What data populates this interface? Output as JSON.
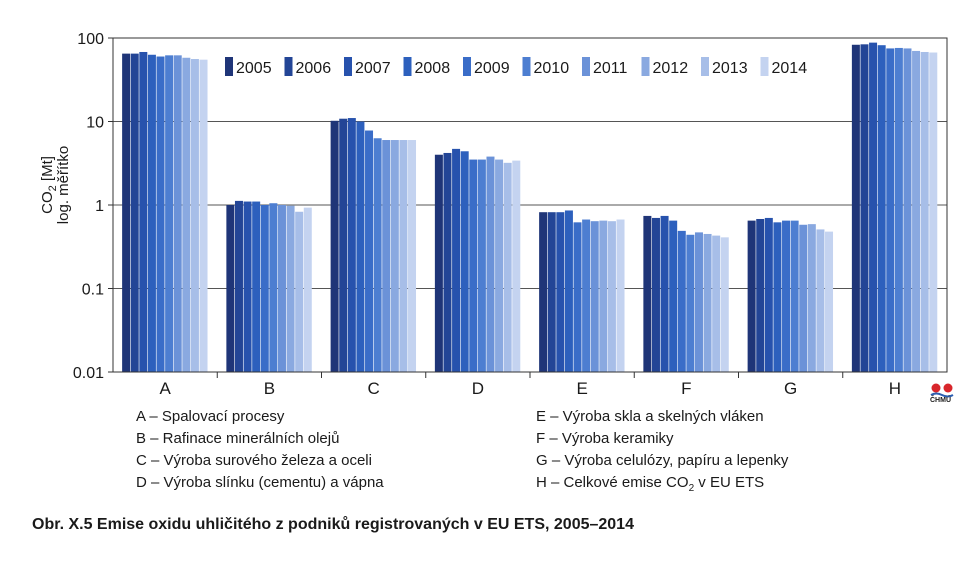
{
  "chart_data": {
    "type": "bar",
    "ylabel_line1": "CO2 [Mt]",
    "ylabel_line2": "log. měřítko",
    "yscale": "log",
    "ylim": [
      0.01,
      100
    ],
    "yticks": [
      "100",
      "10",
      "1",
      "0.1",
      "0.01"
    ],
    "ytick_values": [
      100,
      10,
      1,
      0.1,
      0.01
    ],
    "grid": "horizontal",
    "legend_position": "top-inside",
    "categories": [
      "A",
      "B",
      "C",
      "D",
      "E",
      "F",
      "G",
      "H"
    ],
    "series": [
      {
        "name": "2005",
        "color": "#1f3578",
        "values": [
          65,
          1.0,
          10.2,
          4.0,
          0.82,
          0.74,
          0.65,
          83
        ]
      },
      {
        "name": "2006",
        "color": "#234596",
        "values": [
          65,
          1.12,
          10.8,
          4.2,
          0.82,
          0.7,
          0.68,
          84
        ]
      },
      {
        "name": "2007",
        "color": "#2752ad",
        "values": [
          68,
          1.1,
          11.0,
          4.7,
          0.82,
          0.74,
          0.7,
          88
        ]
      },
      {
        "name": "2008",
        "color": "#2d60bd",
        "values": [
          63,
          1.1,
          10.0,
          4.4,
          0.86,
          0.65,
          0.62,
          82
        ]
      },
      {
        "name": "2009",
        "color": "#3a6dc8",
        "values": [
          60,
          1.0,
          7.8,
          3.5,
          0.62,
          0.49,
          0.65,
          75
        ]
      },
      {
        "name": "2010",
        "color": "#4d7ed1",
        "values": [
          62,
          1.05,
          6.3,
          3.5,
          0.67,
          0.44,
          0.65,
          76
        ]
      },
      {
        "name": "2011",
        "color": "#6b92d8",
        "values": [
          62,
          1.0,
          6.0,
          3.8,
          0.64,
          0.47,
          0.58,
          75
        ]
      },
      {
        "name": "2012",
        "color": "#8aa9e0",
        "values": [
          58,
          0.98,
          6.0,
          3.5,
          0.65,
          0.45,
          0.59,
          70
        ]
      },
      {
        "name": "2013",
        "color": "#a7bee8",
        "values": [
          56,
          0.83,
          6.0,
          3.2,
          0.64,
          0.43,
          0.51,
          68
        ]
      },
      {
        "name": "2014",
        "color": "#c4d3f0",
        "values": [
          55,
          0.93,
          6.0,
          3.4,
          0.67,
          0.41,
          0.48,
          67
        ]
      }
    ]
  },
  "descriptions": {
    "left": [
      "A – Spalovací procesy",
      "B – Rafinace minerálních olejů",
      "C – Výroba surového železa a oceli",
      "D – Výroba slínku (cementu) a vápna"
    ],
    "right": [
      "E – Výroba skla a skelných vláken",
      "F – Výroba keramiky",
      "G – Výroba celulózy, papíru a lepenky"
    ],
    "h_before": "H – Celkové emise CO",
    "h_sub": "2",
    "h_after": " v EU ETS"
  },
  "caption": "Obr. X.5  Emise oxidu uhličitého z podniků registrovaných v EU ETS, 2005–2014",
  "logo": {
    "text": "ČHMÚ"
  }
}
